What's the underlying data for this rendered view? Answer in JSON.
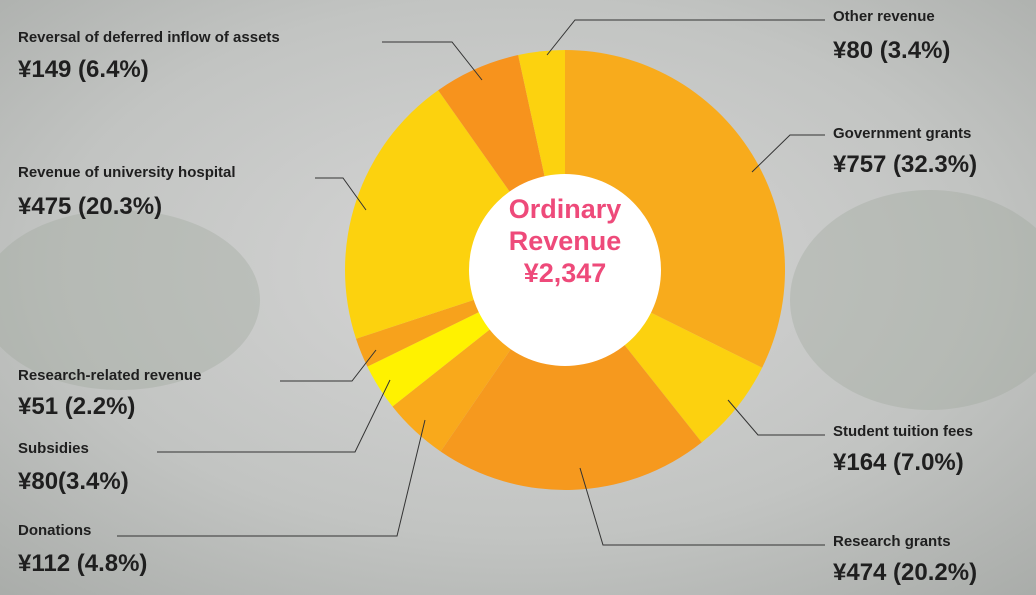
{
  "chart_data": {
    "type": "pie",
    "donut": true,
    "center_text": [
      "Ordinary",
      "Revenue",
      "¥2,347"
    ],
    "categories": [
      "Government grants",
      "Student tuition fees",
      "Research grants",
      "Donations",
      "Subsidies",
      "Research-related revenue",
      "Revenue of university hospital",
      "Reversal of deferred inflow of assets",
      "Other revenue"
    ],
    "values": [
      757,
      164,
      474,
      112,
      80,
      51,
      475,
      149,
      80
    ],
    "value_labels": [
      "¥757 (32.3%)",
      "¥164 (7.0%)",
      "¥474 (20.2%)",
      "¥112 (4.8%)",
      "¥80(3.4%)",
      "¥51 (2.2%)",
      "¥475 (20.3%)",
      "¥149 (6.4%)",
      "¥80 (3.4%)"
    ],
    "colors": [
      "#f8ab1c",
      "#fcd10f",
      "#f6991e",
      "#f9a91b",
      "#fff200",
      "#f7a21c",
      "#fcd20e",
      "#f7931d",
      "#fcd20f"
    ]
  }
}
